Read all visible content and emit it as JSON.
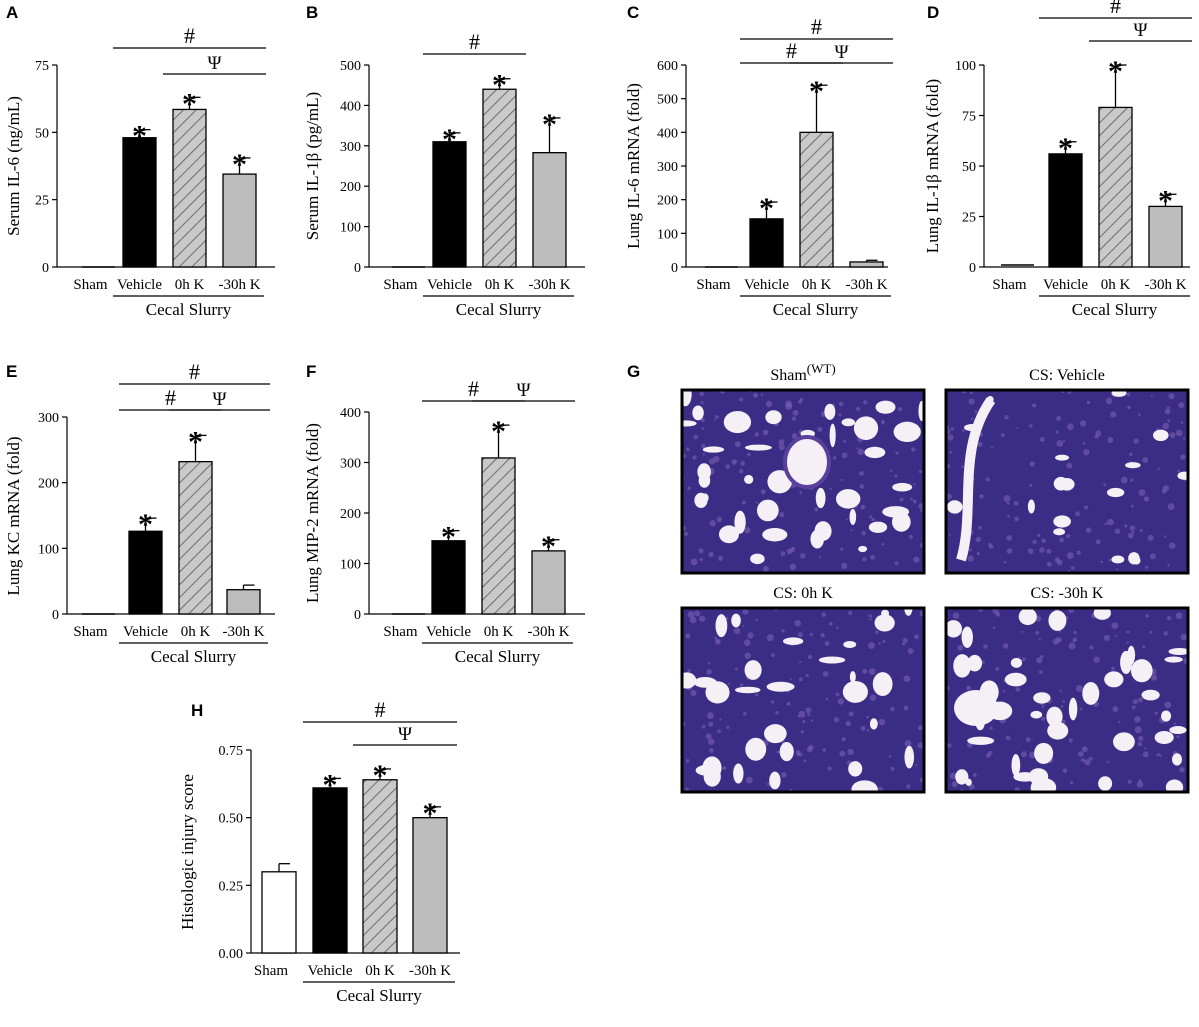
{
  "colors": {
    "vehicle": "#000000",
    "zero_h": "#c8c8c8",
    "minus30h": "#bdbdbd",
    "sham": "#ffffff",
    "tissue": "#3b2d86",
    "tissue_light": "#7a5fb4",
    "space": "#f4f0f6"
  },
  "chart_data": [
    {
      "panel": "A",
      "type": "bar",
      "categories": [
        "Sham",
        "Vehicle",
        "0h K",
        "-30h K"
      ],
      "group_label": "Cecal Slurry",
      "ylabel": "Serum IL-6 (ng/mL)",
      "ylim": [
        0,
        75
      ],
      "yticks": [
        "0",
        "25",
        "50",
        "75"
      ],
      "ytick_values": [
        0,
        25,
        50,
        75
      ],
      "values": [
        0,
        48,
        58.5,
        34.5
      ],
      "errors": [
        0,
        3,
        4.5,
        6
      ],
      "stars": [
        false,
        true,
        true,
        true
      ],
      "brackets": [
        {
          "from": 1,
          "to": 3,
          "symbol": "#",
          "level": 2
        },
        {
          "from": 2,
          "to": 3,
          "symbol": "Ψ",
          "level": 1
        }
      ]
    },
    {
      "panel": "B",
      "type": "bar",
      "categories": [
        "Sham",
        "Vehicle",
        "0h K",
        "-30h K"
      ],
      "group_label": "Cecal Slurry",
      "ylabel": "Serum IL-1β (pg/mL)",
      "ylim": [
        0,
        500
      ],
      "yticks": [
        "0",
        "100",
        "200",
        "300",
        "400",
        "500"
      ],
      "ytick_values": [
        0,
        100,
        200,
        300,
        400,
        500
      ],
      "values": [
        0,
        310,
        440,
        283
      ],
      "errors": [
        0,
        22,
        26,
        86
      ],
      "stars": [
        false,
        true,
        true,
        true
      ],
      "brackets": [
        {
          "from": 1,
          "to": 2,
          "symbol": "#",
          "level": 1
        }
      ]
    },
    {
      "panel": "C",
      "type": "bar",
      "categories": [
        "Sham",
        "Vehicle",
        "0h K",
        "-30h K"
      ],
      "group_label": "Cecal Slurry",
      "ylabel": "Lung IL-6 mRNA (fold)",
      "ylim": [
        0,
        600
      ],
      "yticks": [
        "0",
        "100",
        "200",
        "300",
        "400",
        "500",
        "600"
      ],
      "ytick_values": [
        0,
        100,
        200,
        300,
        400,
        500,
        600
      ],
      "values": [
        0,
        143,
        400,
        15
      ],
      "errors": [
        0,
        50,
        140,
        5
      ],
      "stars": [
        false,
        true,
        true,
        false
      ],
      "brackets": [
        {
          "from": 1,
          "to": 3,
          "symbol": "#",
          "level": 2
        },
        {
          "from": 1,
          "to": 2,
          "symbol": "#",
          "level": 1
        },
        {
          "from": 2,
          "to": 3,
          "symbol": "Ψ",
          "level": 1
        }
      ]
    },
    {
      "panel": "D",
      "type": "bar",
      "categories": [
        "Sham",
        "Vehicle",
        "0h K",
        "-30h K"
      ],
      "group_label": "Cecal Slurry",
      "ylabel": "Lung IL-1β mRNA (fold)",
      "ylim": [
        0,
        100
      ],
      "yticks": [
        "0",
        "25",
        "50",
        "75",
        "100"
      ],
      "ytick_values": [
        0,
        25,
        50,
        75,
        100
      ],
      "values": [
        1,
        56,
        79,
        30
      ],
      "errors": [
        0,
        6,
        21,
        6
      ],
      "stars": [
        false,
        true,
        true,
        true
      ],
      "brackets": [
        {
          "from": 1,
          "to": 3,
          "symbol": "#",
          "level": 2
        },
        {
          "from": 2,
          "to": 3,
          "symbol": "Ψ",
          "level": 1
        }
      ]
    },
    {
      "panel": "E",
      "type": "bar",
      "categories": [
        "Sham",
        "Vehicle",
        "0h K",
        "-30h K"
      ],
      "group_label": "Cecal Slurry",
      "ylabel": "Lung KC mRNA (fold)",
      "ylim": [
        0,
        300
      ],
      "yticks": [
        "0",
        "100",
        "200",
        "300"
      ],
      "ytick_values": [
        0,
        100,
        200,
        300
      ],
      "values": [
        0,
        126,
        232,
        37
      ],
      "errors": [
        0,
        20,
        40,
        7
      ],
      "stars": [
        false,
        true,
        true,
        false
      ],
      "brackets": [
        {
          "from": 1,
          "to": 3,
          "symbol": "#",
          "level": 2
        },
        {
          "from": 1,
          "to": 2,
          "symbol": "#",
          "level": 1
        },
        {
          "from": 2,
          "to": 3,
          "symbol": "Ψ",
          "level": 1
        }
      ]
    },
    {
      "panel": "F",
      "type": "bar",
      "categories": [
        "Sham",
        "Vehicle",
        "0h K",
        "-30h K"
      ],
      "group_label": "Cecal Slurry",
      "ylabel": "Lung MIP-2 mRNA (fold)",
      "ylim": [
        0,
        400
      ],
      "yticks": [
        "0",
        "100",
        "200",
        "300",
        "400"
      ],
      "ytick_values": [
        0,
        100,
        200,
        300,
        400
      ],
      "values": [
        0,
        145,
        309,
        125
      ],
      "errors": [
        0,
        20,
        65,
        22
      ],
      "stars": [
        false,
        true,
        true,
        true
      ],
      "brackets": [
        {
          "from": 1,
          "to": 2,
          "symbol": "#",
          "level": 1
        },
        {
          "from": 2,
          "to": 3,
          "symbol": "Ψ",
          "level": 1
        }
      ]
    },
    {
      "panel": "H",
      "type": "bar",
      "categories": [
        "Sham",
        "Vehicle",
        "0h K",
        "-30h K"
      ],
      "group_label": "Cecal Slurry",
      "ylabel": "Histologic injury score",
      "ylim": [
        0,
        0.75
      ],
      "yticks": [
        "0.00",
        "0.25",
        "0.50",
        "0.75"
      ],
      "ytick_values": [
        0,
        0.25,
        0.5,
        0.75
      ],
      "values": [
        0.3,
        0.61,
        0.64,
        0.5
      ],
      "errors": [
        0.03,
        0.035,
        0.04,
        0.04
      ],
      "stars": [
        false,
        true,
        true,
        true
      ],
      "brackets": [
        {
          "from": 1,
          "to": 3,
          "symbol": "#",
          "level": 2
        },
        {
          "from": 2,
          "to": 3,
          "symbol": "Ψ",
          "level": 1
        }
      ]
    }
  ],
  "histology": {
    "panel": "G",
    "images": [
      {
        "title": "Sham",
        "subtitle": "(WT)"
      },
      {
        "title": "CS: Vehicle",
        "subtitle": ""
      },
      {
        "title": "CS: 0h K",
        "subtitle": ""
      },
      {
        "title": "CS: -30h K",
        "subtitle": ""
      }
    ]
  }
}
